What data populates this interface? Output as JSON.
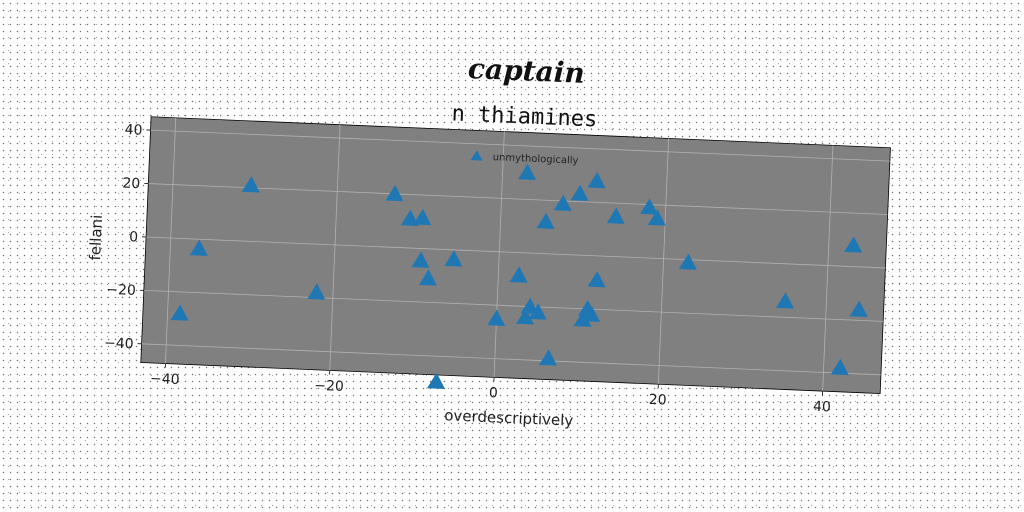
{
  "chart_data": {
    "type": "scatter",
    "title": "captain",
    "subtitle": "n thiamines",
    "xlabel": "overdescriptively",
    "ylabel": "fellani",
    "xlim": [
      -43,
      47
    ],
    "ylim": [
      -47,
      45
    ],
    "xticks": [
      -40,
      -20,
      0,
      20,
      40
    ],
    "yticks": [
      -40,
      -20,
      0,
      20,
      40
    ],
    "grid": true,
    "legend_position": "top-center",
    "marker": "triangle-up",
    "plot_background": "#808080",
    "marker_color": "#1f77b4",
    "series": [
      {
        "name": "unmythologically",
        "x": [
          -30.5,
          -36.5,
          -38.5,
          -22,
          -13,
          -11,
          -9.5,
          -9.5,
          -8.5,
          -5.5,
          -7,
          3,
          2.5,
          4,
          3.5,
          5,
          0,
          5.5,
          6.5,
          7.5,
          9.5,
          11.5,
          11,
          10.5,
          11.5,
          12,
          14,
          18,
          19,
          23,
          35,
          42,
          43,
          44
        ],
        "y": [
          21,
          -3.5,
          -28,
          -18,
          20,
          11,
          11.5,
          -4.5,
          -11,
          -3.5,
          -49.5,
          30,
          -8.5,
          -20,
          -24,
          -22,
          -25,
          12,
          -39,
          19,
          23,
          28,
          -20,
          -24,
          -22,
          -9,
          15,
          19,
          15,
          -1,
          -14,
          -38,
          8,
          -16
        ]
      }
    ]
  }
}
